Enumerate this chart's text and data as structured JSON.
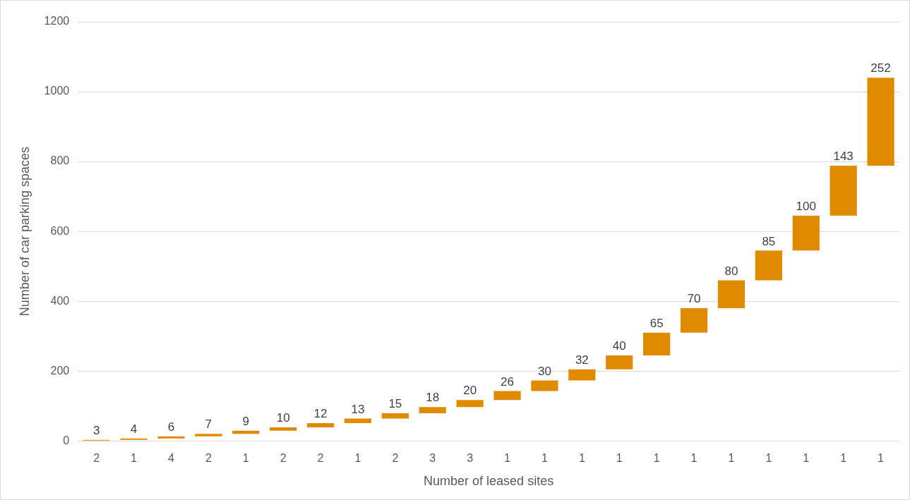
{
  "chart_data": {
    "type": "bar",
    "xlabel": "Number of leased sites",
    "ylabel": "Number of car parking spaces",
    "categories": [
      "2",
      "1",
      "4",
      "2",
      "1",
      "2",
      "2",
      "1",
      "2",
      "3",
      "3",
      "1",
      "1",
      "1",
      "1",
      "1",
      "1",
      "1",
      "1",
      "1",
      "1",
      "1"
    ],
    "values": [
      3,
      4,
      6,
      7,
      9,
      10,
      12,
      13,
      15,
      18,
      20,
      26,
      30,
      32,
      40,
      65,
      70,
      80,
      85,
      100,
      143,
      252
    ],
    "base": [
      0,
      3,
      7,
      13,
      20,
      29,
      39,
      51,
      64,
      79,
      97,
      117,
      143,
      173,
      205,
      245,
      310,
      380,
      460,
      545,
      645,
      788
    ],
    "color": "#e08a00",
    "ylim": [
      0,
      1200
    ],
    "yticks": [
      0,
      200,
      400,
      600,
      800,
      1000,
      1200
    ],
    "grid": "y",
    "legend": false,
    "data_labels": true
  }
}
